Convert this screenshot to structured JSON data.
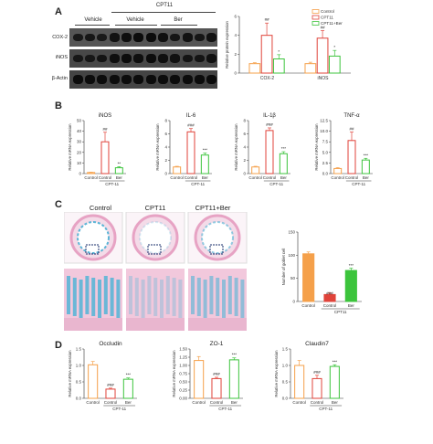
{
  "panel_letters": [
    "A",
    "B",
    "C",
    "D"
  ],
  "western_blot": {
    "group_header": "CPT11",
    "group_labels": [
      "Vehicle",
      "Vehicle",
      "Ber"
    ],
    "row_labels": [
      "COX-2",
      "iNOS",
      "β-Actin"
    ]
  },
  "histology": {
    "titles": [
      "Control",
      "CPT11",
      "CPT11+Ber"
    ]
  },
  "colors": {
    "control": "#f5a04a",
    "cpt11": "#e0433a",
    "ber": "#3cc43c",
    "blot_bg": "#2c2c2c",
    "stain_pink": "#e7a3c4",
    "stain_blue": "#5bb5d6"
  },
  "chart_data": [
    {
      "id": "A-protein",
      "type": "bar",
      "ylabel": "Relative protein expression",
      "ylim": [
        0,
        6
      ],
      "ticks": [
        0,
        2,
        4,
        6
      ],
      "categories": [
        "COX-2",
        "iNOS"
      ],
      "legend": [
        "Control",
        "CPT11",
        "CPT11+Ber"
      ],
      "legend_position": "top-right",
      "series": [
        {
          "name": "Control",
          "values": [
            1.0,
            1.0
          ],
          "errors": [
            0.1,
            0.15
          ]
        },
        {
          "name": "CPT11",
          "values": [
            4.0,
            3.7
          ],
          "errors": [
            1.3,
            0.8
          ]
        },
        {
          "name": "CPT11+Ber",
          "values": [
            1.5,
            1.8
          ],
          "errors": [
            0.45,
            0.6
          ]
        }
      ],
      "annotations": [
        "##",
        "*",
        "##",
        "*"
      ]
    },
    {
      "id": "B-iNOS",
      "type": "bar",
      "title": "iNOS",
      "ylabel": "Relative mRNA expression",
      "ylim": [
        0,
        50
      ],
      "ticks": [
        0,
        10,
        20,
        30,
        40,
        50
      ],
      "categories": [
        "Control",
        "Control",
        "Ber"
      ],
      "group_label": "CPT-11",
      "values": [
        1,
        30,
        5.5
      ],
      "errors": [
        0.3,
        9,
        1.0
      ],
      "annotations": [
        "",
        "##",
        "**"
      ]
    },
    {
      "id": "B-IL6",
      "type": "bar",
      "title": "IL-6",
      "ylabel": "Relative mRNA expression",
      "ylim": [
        0,
        8
      ],
      "ticks": [
        0,
        2,
        4,
        6,
        8
      ],
      "categories": [
        "Control",
        "Control",
        "Ber"
      ],
      "group_label": "CPT-11",
      "values": [
        1,
        6.3,
        2.8
      ],
      "errors": [
        0.1,
        0.5,
        0.3
      ],
      "annotations": [
        "",
        "###",
        "***"
      ]
    },
    {
      "id": "B-IL1b",
      "type": "bar",
      "title": "IL-1β",
      "ylabel": "Relative mRNA expression",
      "ylim": [
        0,
        8
      ],
      "ticks": [
        0,
        2,
        4,
        6,
        8
      ],
      "categories": [
        "Control",
        "Control",
        "Ber"
      ],
      "group_label": "CPT-11",
      "values": [
        1,
        6.5,
        3.0
      ],
      "errors": [
        0.1,
        0.4,
        0.3
      ],
      "annotations": [
        "",
        "###",
        "***"
      ]
    },
    {
      "id": "B-TNFa",
      "type": "bar",
      "title": "TNF-α",
      "ylabel": "Relative mRNA expression",
      "ylim": [
        0,
        12.5
      ],
      "ticks": [
        0,
        2.5,
        5.0,
        7.5,
        10.0,
        12.5
      ],
      "categories": [
        "Control",
        "Control",
        "Ber"
      ],
      "group_label": "CPT-11",
      "values": [
        1.2,
        7.8,
        3.2
      ],
      "errors": [
        0.2,
        2.0,
        0.4
      ],
      "annotations": [
        "",
        "##",
        "***"
      ]
    },
    {
      "id": "C-goblet",
      "type": "bar",
      "ylabel": "Number of goblet cell",
      "ylim": [
        0,
        150
      ],
      "ticks": [
        0,
        50,
        100,
        150
      ],
      "categories": [
        "Control",
        "Control",
        "Ber"
      ],
      "group_label": "CPT11",
      "values": [
        103,
        15,
        67
      ],
      "errors": [
        4,
        3,
        5
      ],
      "annotations": [
        "",
        "###",
        "***"
      ],
      "filled": true
    },
    {
      "id": "D-occludin",
      "type": "bar",
      "title": "Occludin",
      "ylabel": "Relative mRNA expression",
      "ylim": [
        0,
        1.5
      ],
      "ticks": [
        0.0,
        0.5,
        1.0,
        1.5
      ],
      "categories": [
        "Control",
        "Control",
        "Ber"
      ],
      "group_label": "CPT-11",
      "values": [
        1.02,
        0.28,
        0.58
      ],
      "errors": [
        0.1,
        0.03,
        0.04
      ],
      "annotations": [
        "",
        "###",
        "***"
      ]
    },
    {
      "id": "D-ZO1",
      "type": "bar",
      "title": "ZO-1",
      "ylabel": "Relative mRNA expression",
      "ylim": [
        0,
        1.5
      ],
      "ticks": [
        0.0,
        0.25,
        0.5,
        0.75,
        1.0,
        1.25,
        1.5
      ],
      "categories": [
        "Control",
        "Control",
        "Ber"
      ],
      "group_label": "CPT-11",
      "values": [
        1.15,
        0.6,
        1.17
      ],
      "errors": [
        0.12,
        0.04,
        0.06
      ],
      "annotations": [
        "",
        "###",
        "***"
      ]
    },
    {
      "id": "D-claudin7",
      "type": "bar",
      "title": "Claudin7",
      "ylabel": "Relative mRNA expression",
      "ylim": [
        0,
        1.5
      ],
      "ticks": [
        0.0,
        0.5,
        1.0,
        1.5
      ],
      "categories": [
        "Control",
        "Control",
        "Ber"
      ],
      "group_label": "CPT-11",
      "values": [
        1.0,
        0.6,
        0.97
      ],
      "errors": [
        0.15,
        0.1,
        0.05
      ],
      "annotations": [
        "",
        "###",
        "***"
      ]
    }
  ]
}
